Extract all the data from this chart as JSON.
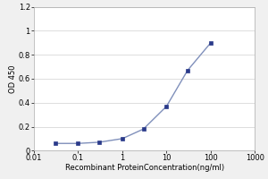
{
  "x": [
    0.03,
    0.1,
    0.3,
    1,
    3,
    10,
    30,
    100
  ],
  "y": [
    0.06,
    0.06,
    0.07,
    0.1,
    0.18,
    0.37,
    0.67,
    0.9
  ],
  "xlim": [
    0.01,
    1000
  ],
  "ylim": [
    0,
    1.2
  ],
  "yticks": [
    0,
    0.2,
    0.4,
    0.6,
    0.8,
    1.0,
    1.2
  ],
  "ytick_labels": [
    "0",
    "0.2",
    "0.4",
    "0.6",
    "0.8",
    "1",
    "1.2"
  ],
  "xtick_vals": [
    0.01,
    0.1,
    1,
    10,
    100,
    1000
  ],
  "xtick_labels": [
    "0.01",
    "0.1",
    "1",
    "10",
    "100",
    "1000"
  ],
  "xlabel": "Recombinant ProteinConcentration(ng/ml)",
  "ylabel": "OD 450",
  "line_color": "#8090bb",
  "marker_color": "#2a3a8a",
  "marker_size": 3,
  "line_width": 1.0,
  "bg_color": "#f0f0f0",
  "plot_bg_color": "#ffffff",
  "grid_color": "#d0d0d0",
  "label_fontsize": 6,
  "tick_fontsize": 6,
  "fig_width": 3.0,
  "fig_height": 2.0,
  "dpi": 100
}
